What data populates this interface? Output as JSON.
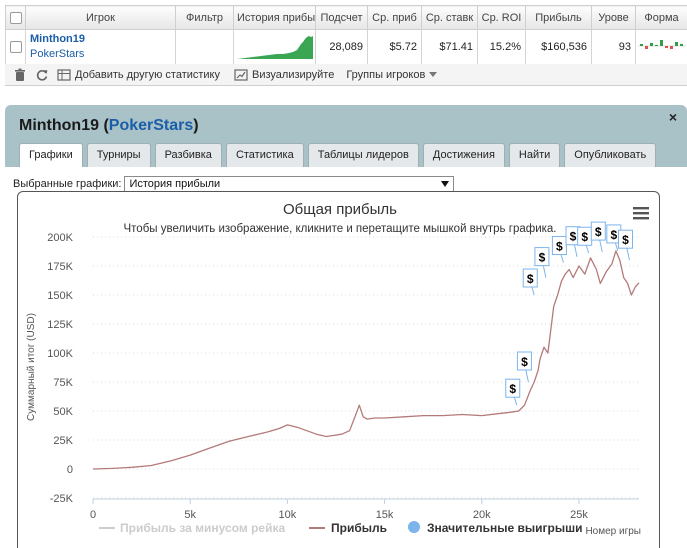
{
  "stats_table": {
    "headers": [
      "Игрок",
      "Фильтр",
      "История прибыл",
      "Подсчет",
      "Ср. приб",
      "Ср. ставк",
      "Ср. ROI",
      "Прибыль",
      "Урове",
      "Форма"
    ],
    "row": {
      "player_name": "Minthon19",
      "site": "PokerStars",
      "filter": "",
      "count": "28,089",
      "avg_profit": "$5.72",
      "avg_stake": "$71.41",
      "avg_roi": "15.2%",
      "profit": "$160,536",
      "level": "93"
    }
  },
  "toolbar": {
    "add_stats_label": "Добавить другую статистику",
    "visualize_label": "Визуализируйте",
    "groups_label": "Группы игроков"
  },
  "panel": {
    "player_name": "Minthon19",
    "site": "PokerStars",
    "title_open": "(",
    "title_close": ")",
    "close_icon": "×",
    "tabs": [
      "Графики",
      "Турниры",
      "Разбивка",
      "Статистика",
      "Таблицы лидеров",
      "Достижения",
      "Найти",
      "Опубликовать"
    ],
    "active_tab": 0,
    "graph_select_label": "Выбранные графики:",
    "graph_select_value": "История прибыли"
  },
  "chart_data": {
    "type": "line",
    "title": "Общая прибыль",
    "subtitle": "Чтобы увеличить изображение, кликните и перетащите мышкой внутрь графика.",
    "ylabel": "Суммарный итог (USD)",
    "xlabel": "Номер игры",
    "yticks": [
      "200K",
      "175K",
      "150K",
      "125K",
      "100K",
      "75K",
      "50K",
      "25K",
      "0",
      "-25K"
    ],
    "xticks": [
      "0",
      "5k",
      "10k",
      "15k",
      "20k",
      "25k"
    ],
    "ylim": [
      -25000,
      200000
    ],
    "xlim": [
      0,
      28089
    ],
    "grid": true,
    "legend_position": "bottom",
    "legend": [
      "Прибыль за минусом рейка",
      "Прибыль",
      "Значительные выигрыши"
    ],
    "series": [
      {
        "name": "Прибыль",
        "color": "#b47a7a",
        "x": [
          0,
          1000,
          2000,
          3000,
          4000,
          5000,
          6000,
          7000,
          8000,
          9000,
          9600,
          10000,
          10500,
          11000,
          11500,
          12000,
          12400,
          12800,
          13200,
          13500,
          13700,
          13900,
          14100,
          14500,
          15000,
          16000,
          17000,
          18000,
          19000,
          20000,
          21000,
          21500,
          21900,
          22200,
          22500,
          22700,
          22900,
          23000,
          23200,
          23400,
          23700,
          23900,
          24100,
          24300,
          24500,
          24700,
          25000,
          25300,
          25600,
          25900,
          26100,
          26400,
          26700,
          26900,
          27100,
          27300,
          27500,
          27700,
          27900,
          28089
        ],
        "y": [
          0,
          500,
          1500,
          3000,
          7000,
          12000,
          18000,
          24000,
          28000,
          32000,
          35000,
          38000,
          36000,
          33000,
          30000,
          28000,
          29000,
          30000,
          33000,
          46000,
          55000,
          45000,
          43000,
          44000,
          44000,
          45000,
          46000,
          46000,
          47000,
          46000,
          48000,
          49000,
          50000,
          55000,
          68000,
          75000,
          85000,
          95000,
          105000,
          100000,
          140000,
          150000,
          162000,
          168000,
          172000,
          165000,
          175000,
          168000,
          182000,
          172000,
          160000,
          170000,
          177000,
          188000,
          180000,
          165000,
          160000,
          150000,
          157000,
          160536
        ]
      }
    ],
    "big_wins": [
      {
        "x": 21800,
        "y": 55000
      },
      {
        "x": 22400,
        "y": 75000
      },
      {
        "x": 22700,
        "y": 150000
      },
      {
        "x": 23300,
        "y": 165000
      },
      {
        "x": 24200,
        "y": 178000
      },
      {
        "x": 24900,
        "y": 183000
      },
      {
        "x": 25500,
        "y": 186000
      },
      {
        "x": 26200,
        "y": 187000
      },
      {
        "x": 27000,
        "y": 188000
      },
      {
        "x": 27600,
        "y": 180000
      }
    ]
  },
  "colors": {
    "panel_bg": "#a9c2c8",
    "accent_blue": "#1b5ea8",
    "profit_line": "#b47a7a",
    "rake_line": "#cccccc",
    "big_win": "#7cb5ec",
    "spark_green": "#2e9e4a"
  },
  "icons": {
    "delete": "trash-icon",
    "refresh": "refresh-icon",
    "add": "add-stats-icon",
    "visualize": "chart-icon",
    "menu": "hamburger-icon"
  }
}
